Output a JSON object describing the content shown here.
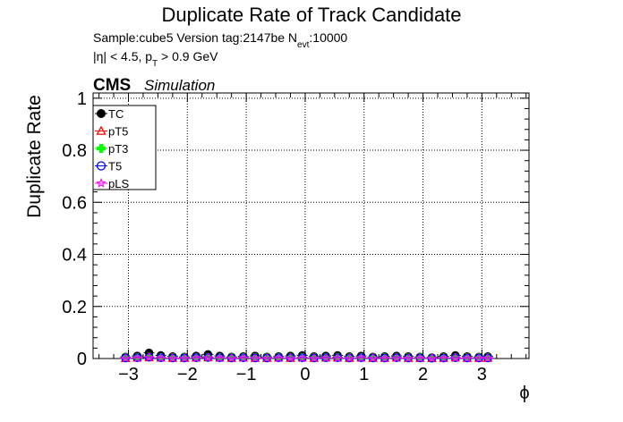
{
  "header": {
    "title": "Duplicate Rate of Track Candidate",
    "sample_line": "Sample:cube5   Version tag:2147be  N",
    "sample_sub": "evt",
    "sample_tail": ":10000",
    "cut_line_a": "|η| < 4.5, p",
    "cut_sub": "T",
    "cut_line_b": " > 0.9 GeV",
    "cms": "CMS",
    "simulation": "Simulation"
  },
  "chart_data": {
    "type": "scatter",
    "title": "Duplicate Rate of Track Candidate",
    "xlabel": "ϕ",
    "ylabel": "Duplicate Rate",
    "xlim": [
      -3.6,
      3.8
    ],
    "ylim": [
      0,
      1.02
    ],
    "grid": true,
    "legend_position": "top-left",
    "x_ticks": [
      -3,
      -2,
      -1,
      0,
      1,
      2,
      3
    ],
    "x_tick_labels": [
      "−3",
      "−2",
      "−1",
      "0",
      "1",
      "2",
      "3"
    ],
    "y_ticks": [
      0,
      0.2,
      0.4,
      0.6,
      0.8,
      1
    ],
    "y_tick_labels": [
      "0",
      "0.2",
      "0.4",
      "0.6",
      "0.8",
      "1"
    ],
    "x": [
      -3.05,
      -2.85,
      -2.65,
      -2.45,
      -2.25,
      -2.05,
      -1.85,
      -1.65,
      -1.45,
      -1.25,
      -1.05,
      -0.85,
      -0.65,
      -0.45,
      -0.25,
      -0.05,
      0.15,
      0.35,
      0.55,
      0.75,
      0.95,
      1.15,
      1.35,
      1.55,
      1.75,
      1.95,
      2.15,
      2.35,
      2.55,
      2.75,
      2.95,
      3.1
    ],
    "series": [
      {
        "name": "TC",
        "color": "#000000",
        "marker": "filled-circle",
        "values": [
          0.006,
          0.01,
          0.022,
          0.012,
          0.008,
          0.006,
          0.01,
          0.016,
          0.01,
          0.006,
          0.008,
          0.01,
          0.006,
          0.008,
          0.01,
          0.012,
          0.008,
          0.01,
          0.012,
          0.008,
          0.01,
          0.006,
          0.008,
          0.01,
          0.008,
          0.006,
          0.004,
          0.008,
          0.012,
          0.008,
          0.006,
          0.008
        ]
      },
      {
        "name": "pT5",
        "color": "#ff0000",
        "marker": "open-triangle",
        "values": [
          0.0,
          0.002,
          0.003,
          0.002,
          0.001,
          0.001,
          0.002,
          0.003,
          0.002,
          0.001,
          0.002,
          0.001,
          0.001,
          0.002,
          0.001,
          0.002,
          0.001,
          0.002,
          0.002,
          0.001,
          0.002,
          0.001,
          0.001,
          0.002,
          0.001,
          0.001,
          0.0,
          0.001,
          0.002,
          0.001,
          0.001,
          0.001
        ]
      },
      {
        "name": "pT3",
        "color": "#00ff00",
        "marker": "filled-cross",
        "values": [
          0.003,
          0.004,
          0.006,
          0.004,
          0.003,
          0.003,
          0.004,
          0.005,
          0.004,
          0.003,
          0.004,
          0.003,
          0.003,
          0.004,
          0.004,
          0.005,
          0.003,
          0.004,
          0.005,
          0.003,
          0.004,
          0.003,
          0.003,
          0.004,
          0.003,
          0.003,
          0.002,
          0.003,
          0.004,
          0.003,
          0.003,
          0.003
        ]
      },
      {
        "name": "T5",
        "color": "#0000ff",
        "marker": "open-circle",
        "values": [
          0.002,
          0.003,
          0.005,
          0.003,
          0.002,
          0.002,
          0.003,
          0.004,
          0.003,
          0.002,
          0.003,
          0.002,
          0.002,
          0.003,
          0.003,
          0.003,
          0.002,
          0.003,
          0.003,
          0.002,
          0.003,
          0.002,
          0.002,
          0.003,
          0.002,
          0.002,
          0.001,
          0.002,
          0.003,
          0.002,
          0.002,
          0.002
        ]
      },
      {
        "name": "pLS",
        "color": "#ff00ff",
        "marker": "open-star",
        "values": [
          0.001,
          0.002,
          0.004,
          0.002,
          0.001,
          0.001,
          0.002,
          0.003,
          0.002,
          0.001,
          0.002,
          0.001,
          0.001,
          0.002,
          0.002,
          0.002,
          0.001,
          0.002,
          0.002,
          0.001,
          0.002,
          0.001,
          0.001,
          0.002,
          0.001,
          0.001,
          0.001,
          0.001,
          0.002,
          0.001,
          0.001,
          0.001
        ]
      }
    ]
  }
}
